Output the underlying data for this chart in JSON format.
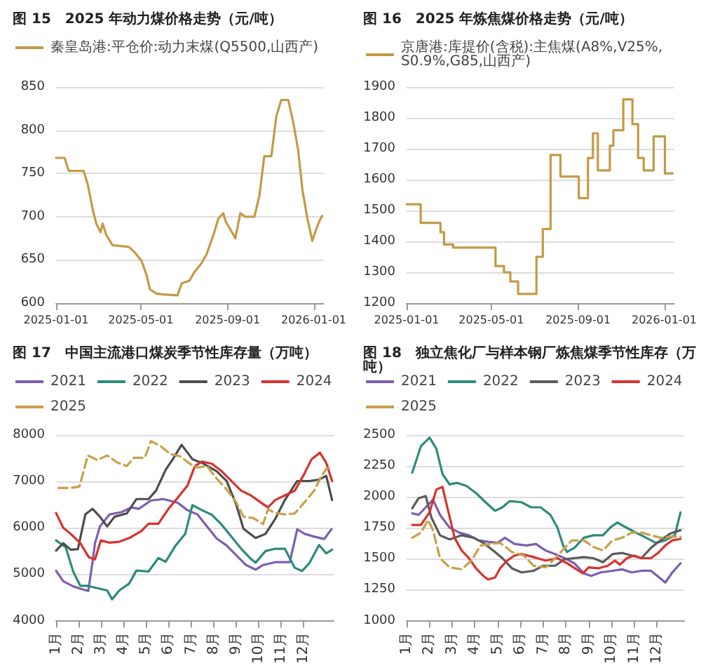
{
  "chart_data": [
    {
      "type": "line",
      "title": "图 15　2025 年动力煤价格走势（元/吨）",
      "legend": "top",
      "grid": "y",
      "marker": "none",
      "xlim": [
        "2025-01-01",
        "2026-01-15"
      ],
      "xticks": [
        "2025-01-01",
        "2025-05-01",
        "2025-09-01",
        "2026-01-01"
      ],
      "ylim": [
        600,
        850
      ],
      "yticks": [
        600,
        650,
        700,
        750,
        800,
        850
      ],
      "series": [
        {
          "name": "秦皇岛港:平仓价:动力末煤(Q5500,山西产)",
          "color": "#c49a45",
          "x": [
            "2025-01-01",
            "2025-01-13",
            "2025-01-19",
            "2025-02-09",
            "2025-02-15",
            "2025-02-22",
            "2025-02-27",
            "2025-03-05",
            "2025-03-08",
            "2025-03-13",
            "2025-03-22",
            "2025-04-14",
            "2025-04-21",
            "2025-05-02",
            "2025-05-09",
            "2025-05-14",
            "2025-05-23",
            "2025-06-02",
            "2025-06-22",
            "2025-06-28",
            "2025-07-09",
            "2025-07-16",
            "2025-07-26",
            "2025-08-02",
            "2025-08-12",
            "2025-08-19",
            "2025-08-26",
            "2025-08-29",
            "2025-09-05",
            "2025-09-12",
            "2025-09-19",
            "2025-09-26",
            "2025-10-09",
            "2025-10-16",
            "2025-10-23",
            "2025-11-02",
            "2025-11-09",
            "2025-11-16",
            "2025-11-26",
            "2025-12-03",
            "2025-12-10",
            "2025-12-16",
            "2025-12-23",
            "2025-12-30",
            "2026-01-03",
            "2026-01-09",
            "2026-01-13"
          ],
          "values": [
            768,
            768,
            753,
            753,
            737,
            708,
            692,
            682,
            692,
            679,
            667,
            665,
            660,
            649,
            633,
            616,
            611,
            610,
            609,
            623,
            626,
            636,
            646,
            656,
            679,
            698,
            704,
            695,
            685,
            675,
            704,
            700,
            700,
            724,
            770,
            770,
            816,
            835,
            835,
            809,
            777,
            731,
            698,
            672,
            682,
            695,
            701
          ]
        }
      ]
    },
    {
      "type": "step",
      "title": "图 16　2025 年炼焦煤价格走势（元/吨）",
      "legend": "top",
      "grid": "y",
      "marker": "none",
      "xlim": [
        "2025-01-01",
        "2026-01-15"
      ],
      "xticks": [
        "2025-01-01",
        "2025-05-01",
        "2025-09-01",
        "2026-01-01"
      ],
      "ylim": [
        1200,
        1900
      ],
      "yticks": [
        1200,
        1300,
        1400,
        1500,
        1600,
        1700,
        1800,
        1900
      ],
      "series": [
        {
          "name": "京唐港:库提价(含税):主焦煤(A8%,V25%,S0.9%,G85,山西产)",
          "color": "#c49a45",
          "x": [
            "2025-01-01",
            "2025-01-21",
            "2025-02-18",
            "2025-02-23",
            "2025-03-08",
            "2025-05-07",
            "2025-05-19",
            "2025-05-28",
            "2025-06-08",
            "2025-07-04",
            "2025-07-13",
            "2025-07-24",
            "2025-08-07",
            "2025-09-02",
            "2025-09-15",
            "2025-09-22",
            "2025-09-29",
            "2025-10-16",
            "2025-10-21",
            "2025-11-04",
            "2025-11-17",
            "2025-11-25",
            "2025-12-03",
            "2025-12-17",
            "2026-01-02",
            "2026-01-13"
          ],
          "values": [
            1520,
            1460,
            1430,
            1390,
            1380,
            1320,
            1300,
            1270,
            1230,
            1350,
            1440,
            1680,
            1610,
            1540,
            1670,
            1750,
            1630,
            1710,
            1760,
            1860,
            1780,
            1670,
            1630,
            1740,
            1620,
            1620
          ]
        }
      ]
    },
    {
      "type": "line",
      "title": "图 17　中国主流港口煤炭季节性库存量（万吨）",
      "legend": "top",
      "grid": "y",
      "marker": "none",
      "xlim": [
        1,
        13.34
      ],
      "xticks": [
        {
          "value": 1,
          "label": "1月"
        },
        {
          "value": 2,
          "label": "2月"
        },
        {
          "value": 3,
          "label": "3月"
        },
        {
          "value": 4,
          "label": "4月"
        },
        {
          "value": 5,
          "label": "5月"
        },
        {
          "value": 6,
          "label": "6月"
        },
        {
          "value": 7,
          "label": "7月"
        },
        {
          "value": 8,
          "label": "8月"
        },
        {
          "value": 9,
          "label": "9月"
        },
        {
          "value": 10,
          "label": "10月"
        },
        {
          "value": 11,
          "label": "11月"
        },
        {
          "value": 12,
          "label": "12月"
        }
      ],
      "ylim": [
        4000,
        8000
      ],
      "yticks": [
        4000,
        5000,
        6000,
        7000,
        8000
      ],
      "series": [
        {
          "name": "2021",
          "color": "#7b5fb0",
          "x": [
            1.0,
            1.32,
            1.76,
            2.08,
            2.43,
            2.62,
            2.73,
            2.95,
            3.38,
            3.92,
            4.35,
            4.68,
            5.22,
            5.76,
            6.41,
            6.84,
            7.28,
            7.71,
            8.14,
            8.58,
            9.01,
            9.44,
            9.87,
            10.2,
            10.74,
            11.39,
            11.72,
            12.05,
            12.49,
            12.92,
            13.24
          ],
          "values": [
            5075,
            4850,
            4740,
            4690,
            4640,
            5260,
            5670,
            6030,
            6290,
            6340,
            6440,
            6410,
            6590,
            6620,
            6540,
            6380,
            6290,
            6030,
            5770,
            5620,
            5410,
            5200,
            5100,
            5200,
            5260,
            5260,
            5970,
            5870,
            5810,
            5760,
            5970
          ]
        },
        {
          "name": "2022",
          "color": "#2e8b7a",
          "x": [
            1.0,
            1.43,
            1.76,
            2.08,
            2.41,
            2.84,
            3.27,
            3.49,
            3.81,
            4.25,
            4.57,
            5.11,
            5.55,
            5.87,
            6.3,
            6.74,
            7.06,
            7.49,
            7.93,
            8.36,
            8.79,
            9.23,
            9.66,
            9.87,
            10.31,
            10.74,
            11.17,
            11.61,
            11.93,
            12.26,
            12.69,
            13.01,
            13.27
          ],
          "values": [
            5730,
            5580,
            5060,
            4750,
            4750,
            4700,
            4650,
            4460,
            4650,
            4800,
            5080,
            5060,
            5350,
            5270,
            5610,
            5870,
            6490,
            6380,
            6280,
            6070,
            5810,
            5550,
            5330,
            5250,
            5500,
            5550,
            5550,
            5140,
            5070,
            5240,
            5630,
            5450,
            5530
          ]
        },
        {
          "name": "2023",
          "color": "#4d4d4d",
          "x": [
            1.0,
            1.32,
            1.65,
            1.97,
            2.3,
            2.62,
            2.95,
            3.27,
            3.6,
            4.14,
            4.57,
            5.11,
            5.44,
            5.87,
            6.19,
            6.58,
            7.06,
            7.49,
            8.14,
            8.58,
            9.01,
            9.33,
            9.87,
            10.31,
            10.74,
            11.17,
            11.72,
            12.26,
            12.69,
            13.01,
            13.27
          ],
          "values": [
            5510,
            5670,
            5530,
            5540,
            6290,
            6410,
            6240,
            6030,
            6240,
            6310,
            6620,
            6620,
            6800,
            7250,
            7480,
            7790,
            7480,
            7400,
            7220,
            7010,
            6500,
            5980,
            5780,
            5870,
            6190,
            6600,
            7010,
            7010,
            7040,
            7120,
            6600
          ]
        },
        {
          "name": "2024",
          "color": "#d9312e",
          "x": [
            1.0,
            1.32,
            1.65,
            2.08,
            2.45,
            2.73,
            2.99,
            3.38,
            3.81,
            4.25,
            4.79,
            5.11,
            5.55,
            5.98,
            6.41,
            6.84,
            7.17,
            7.49,
            7.93,
            8.36,
            8.79,
            9.23,
            9.66,
            10.09,
            10.42,
            10.74,
            11.17,
            11.61,
            12.04,
            12.36,
            12.73,
            13.01,
            13.27
          ],
          "values": [
            6320,
            6000,
            5870,
            5670,
            5370,
            5320,
            5730,
            5680,
            5700,
            5780,
            5930,
            6090,
            6090,
            6400,
            6650,
            6910,
            7330,
            7430,
            7380,
            7220,
            7010,
            6800,
            6700,
            6550,
            6440,
            6600,
            6700,
            6800,
            7170,
            7480,
            7620,
            7400,
            7010
          ]
        },
        {
          "name": "2025",
          "color": "#c9a04a",
          "line_style": "dashed",
          "x": [
            1.11,
            1.65,
            2.04,
            2.41,
            2.84,
            3.27,
            3.71,
            4.14,
            4.46,
            4.94,
            5.22,
            5.65,
            6.09,
            6.52,
            6.95,
            7.28,
            7.71,
            8.14,
            8.58,
            9.01,
            9.33,
            9.77,
            10.2,
            10.42,
            10.74,
            11.17,
            11.61,
            12.04,
            12.47,
            12.8,
            13.01,
            13.27
          ],
          "values": [
            6860,
            6860,
            6890,
            7560,
            7460,
            7560,
            7410,
            7330,
            7510,
            7510,
            7870,
            7760,
            7590,
            7540,
            7380,
            7300,
            7330,
            7060,
            6830,
            6550,
            6240,
            6210,
            6080,
            6400,
            6320,
            6290,
            6310,
            6550,
            6800,
            7120,
            7270,
            7300
          ]
        }
      ]
    },
    {
      "type": "line",
      "title": "图 18　独立焦化厂与样本钢厂炼焦煤季节性库存（万吨）",
      "legend": "top",
      "grid": "y",
      "marker": "none",
      "xlim": [
        1,
        13.2
      ],
      "xticks": [
        {
          "value": 1,
          "label": "1月"
        },
        {
          "value": 2,
          "label": "2月"
        },
        {
          "value": 3,
          "label": "3月"
        },
        {
          "value": 4,
          "label": "4月"
        },
        {
          "value": 5,
          "label": "5月"
        },
        {
          "value": 6,
          "label": "6月"
        },
        {
          "value": 7,
          "label": "7月"
        },
        {
          "value": 8,
          "label": "8月"
        },
        {
          "value": 9,
          "label": "9月"
        },
        {
          "value": 10,
          "label": "10月"
        },
        {
          "value": 11,
          "label": "11月"
        },
        {
          "value": 12,
          "label": "12月"
        }
      ],
      "ylim": [
        1000,
        2500
      ],
      "yticks": [
        1000,
        1250,
        1500,
        1750,
        2000,
        2250,
        2500
      ],
      "series": [
        {
          "name": "2021",
          "color": "#7b5fb0",
          "x": [
            1.25,
            1.53,
            1.84,
            2.16,
            2.47,
            2.89,
            3.32,
            3.74,
            4.16,
            4.58,
            5.0,
            5.32,
            5.74,
            6.26,
            6.68,
            7.11,
            7.53,
            7.95,
            8.37,
            8.79,
            9.11,
            9.53,
            10.05,
            10.47,
            10.89,
            11.32,
            11.74,
            12.16,
            12.37,
            12.68,
            13.04
          ],
          "values": [
            1867,
            1855,
            1916,
            1978,
            1855,
            1752,
            1711,
            1690,
            1649,
            1637,
            1629,
            1670,
            1620,
            1608,
            1620,
            1567,
            1538,
            1505,
            1464,
            1382,
            1362,
            1390,
            1403,
            1415,
            1390,
            1403,
            1403,
            1341,
            1308,
            1390,
            1464
          ]
        },
        {
          "name": "2022",
          "color": "#2e8b7a",
          "x": [
            1.25,
            1.63,
            2.01,
            2.31,
            2.58,
            2.89,
            3.21,
            3.63,
            4.05,
            4.47,
            4.89,
            5.21,
            5.53,
            6.05,
            6.47,
            6.89,
            7.32,
            7.63,
            7.88,
            8.05,
            8.37,
            8.79,
            9.21,
            9.63,
            9.95,
            10.26,
            10.58,
            11.0,
            11.53,
            11.95,
            12.37,
            12.79,
            13.04
          ],
          "values": [
            2196,
            2410,
            2479,
            2389,
            2184,
            2101,
            2114,
            2089,
            2031,
            1957,
            1888,
            1916,
            1966,
            1957,
            1916,
            1916,
            1855,
            1752,
            1608,
            1555,
            1588,
            1670,
            1690,
            1690,
            1752,
            1793,
            1760,
            1719,
            1670,
            1629,
            1649,
            1690,
            1875
          ]
        },
        {
          "name": "2023",
          "color": "#5a5a5a",
          "x": [
            1.25,
            1.53,
            1.84,
            2.09,
            2.47,
            2.89,
            3.42,
            3.95,
            4.37,
            4.89,
            5.21,
            5.63,
            6.05,
            6.58,
            7.0,
            7.53,
            7.95,
            8.37,
            8.79,
            9.21,
            9.63,
            10.05,
            10.47,
            10.89,
            11.32,
            11.74,
            12.16,
            12.58,
            13.04
          ],
          "values": [
            1908,
            1990,
            2007,
            1834,
            1690,
            1657,
            1690,
            1670,
            1629,
            1555,
            1505,
            1423,
            1390,
            1403,
            1444,
            1444,
            1497,
            1505,
            1514,
            1505,
            1472,
            1538,
            1547,
            1526,
            1505,
            1588,
            1649,
            1703,
            1731
          ]
        },
        {
          "name": "2024",
          "color": "#d9312e",
          "x": [
            1.25,
            1.63,
            2.01,
            2.31,
            2.58,
            2.79,
            3.11,
            3.42,
            3.74,
            4.05,
            4.37,
            4.58,
            4.89,
            5.11,
            5.42,
            5.74,
            6.05,
            6.58,
            7.11,
            7.63,
            8.05,
            8.47,
            8.75,
            9.0,
            9.42,
            9.84,
            10.16,
            10.37,
            10.68,
            11.0,
            11.32,
            11.74,
            12.05,
            12.37,
            12.68,
            13.04
          ],
          "values": [
            1773,
            1773,
            1875,
            2060,
            2081,
            1916,
            1670,
            1567,
            1505,
            1423,
            1362,
            1333,
            1349,
            1423,
            1485,
            1526,
            1538,
            1514,
            1485,
            1505,
            1464,
            1415,
            1382,
            1431,
            1423,
            1444,
            1485,
            1452,
            1505,
            1526,
            1505,
            1505,
            1547,
            1608,
            1649,
            1661
          ]
        },
        {
          "name": "2025",
          "color": "#c9a04a",
          "line_style": "dashed",
          "x": [
            1.25,
            1.63,
            1.95,
            2.16,
            2.47,
            2.89,
            3.42,
            3.84,
            4.26,
            4.68,
            5.11,
            5.63,
            6.16,
            6.58,
            7.11,
            7.53,
            7.95,
            8.26,
            8.79,
            9.21,
            9.63,
            10.05,
            10.47,
            10.89,
            11.32,
            11.74,
            12.16,
            12.58,
            13.04
          ],
          "values": [
            1670,
            1711,
            1814,
            1731,
            1505,
            1431,
            1415,
            1485,
            1608,
            1620,
            1629,
            1555,
            1526,
            1444,
            1431,
            1505,
            1588,
            1649,
            1649,
            1596,
            1567,
            1649,
            1670,
            1711,
            1711,
            1690,
            1670,
            1678,
            1678
          ]
        }
      ]
    }
  ]
}
